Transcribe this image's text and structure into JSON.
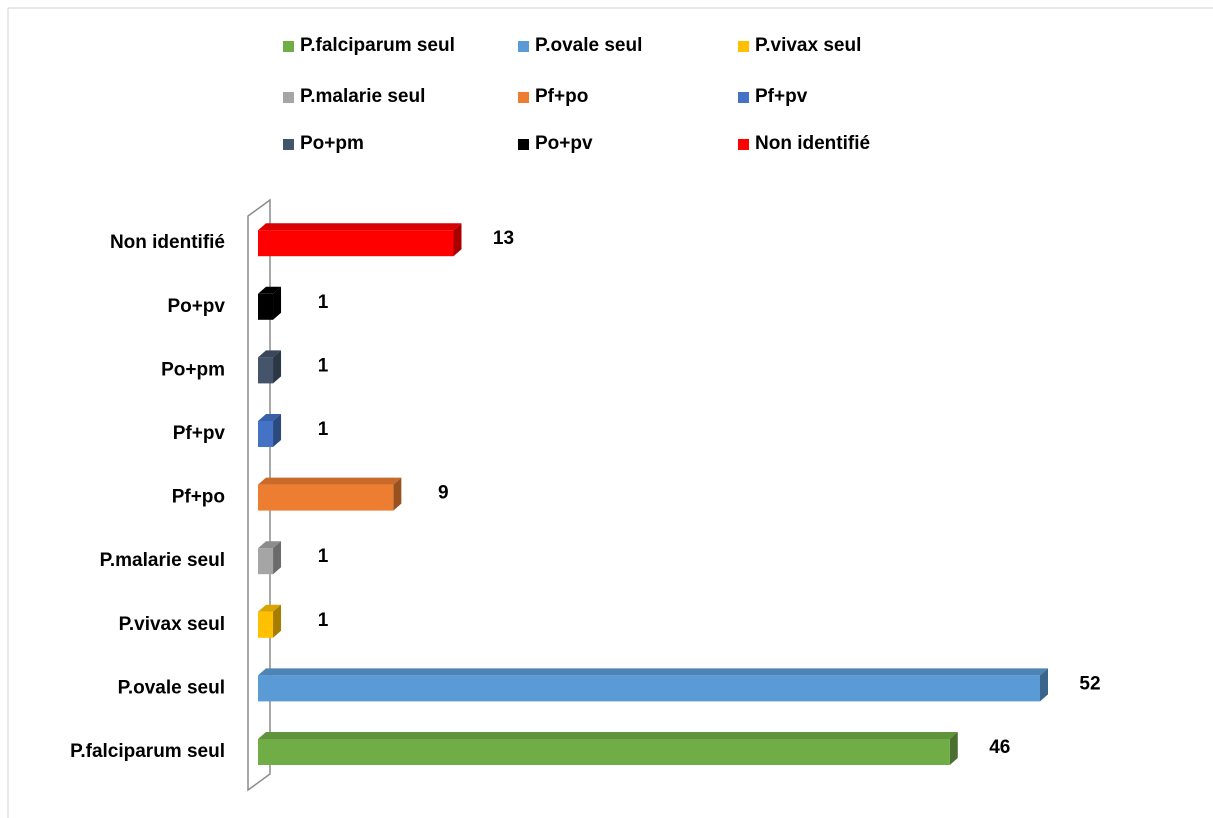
{
  "chart_data": {
    "type": "bar3d_horizontal",
    "categories": [
      "P.falciparum seul",
      "P.ovale seul",
      "P.vivax seul",
      "P.malarie seul",
      "Pf+po",
      "Pf+pv",
      "Po+pm",
      "Po+pv",
      "Non identifié"
    ],
    "values": [
      46,
      52,
      1,
      1,
      9,
      1,
      1,
      1,
      13
    ],
    "colors": [
      "#70ad47",
      "#5b9bd5",
      "#ffc000",
      "#a5a5a5",
      "#ed7d31",
      "#4472c4",
      "#44546a",
      "#000000",
      "#ff0000"
    ],
    "legend": "top"
  }
}
